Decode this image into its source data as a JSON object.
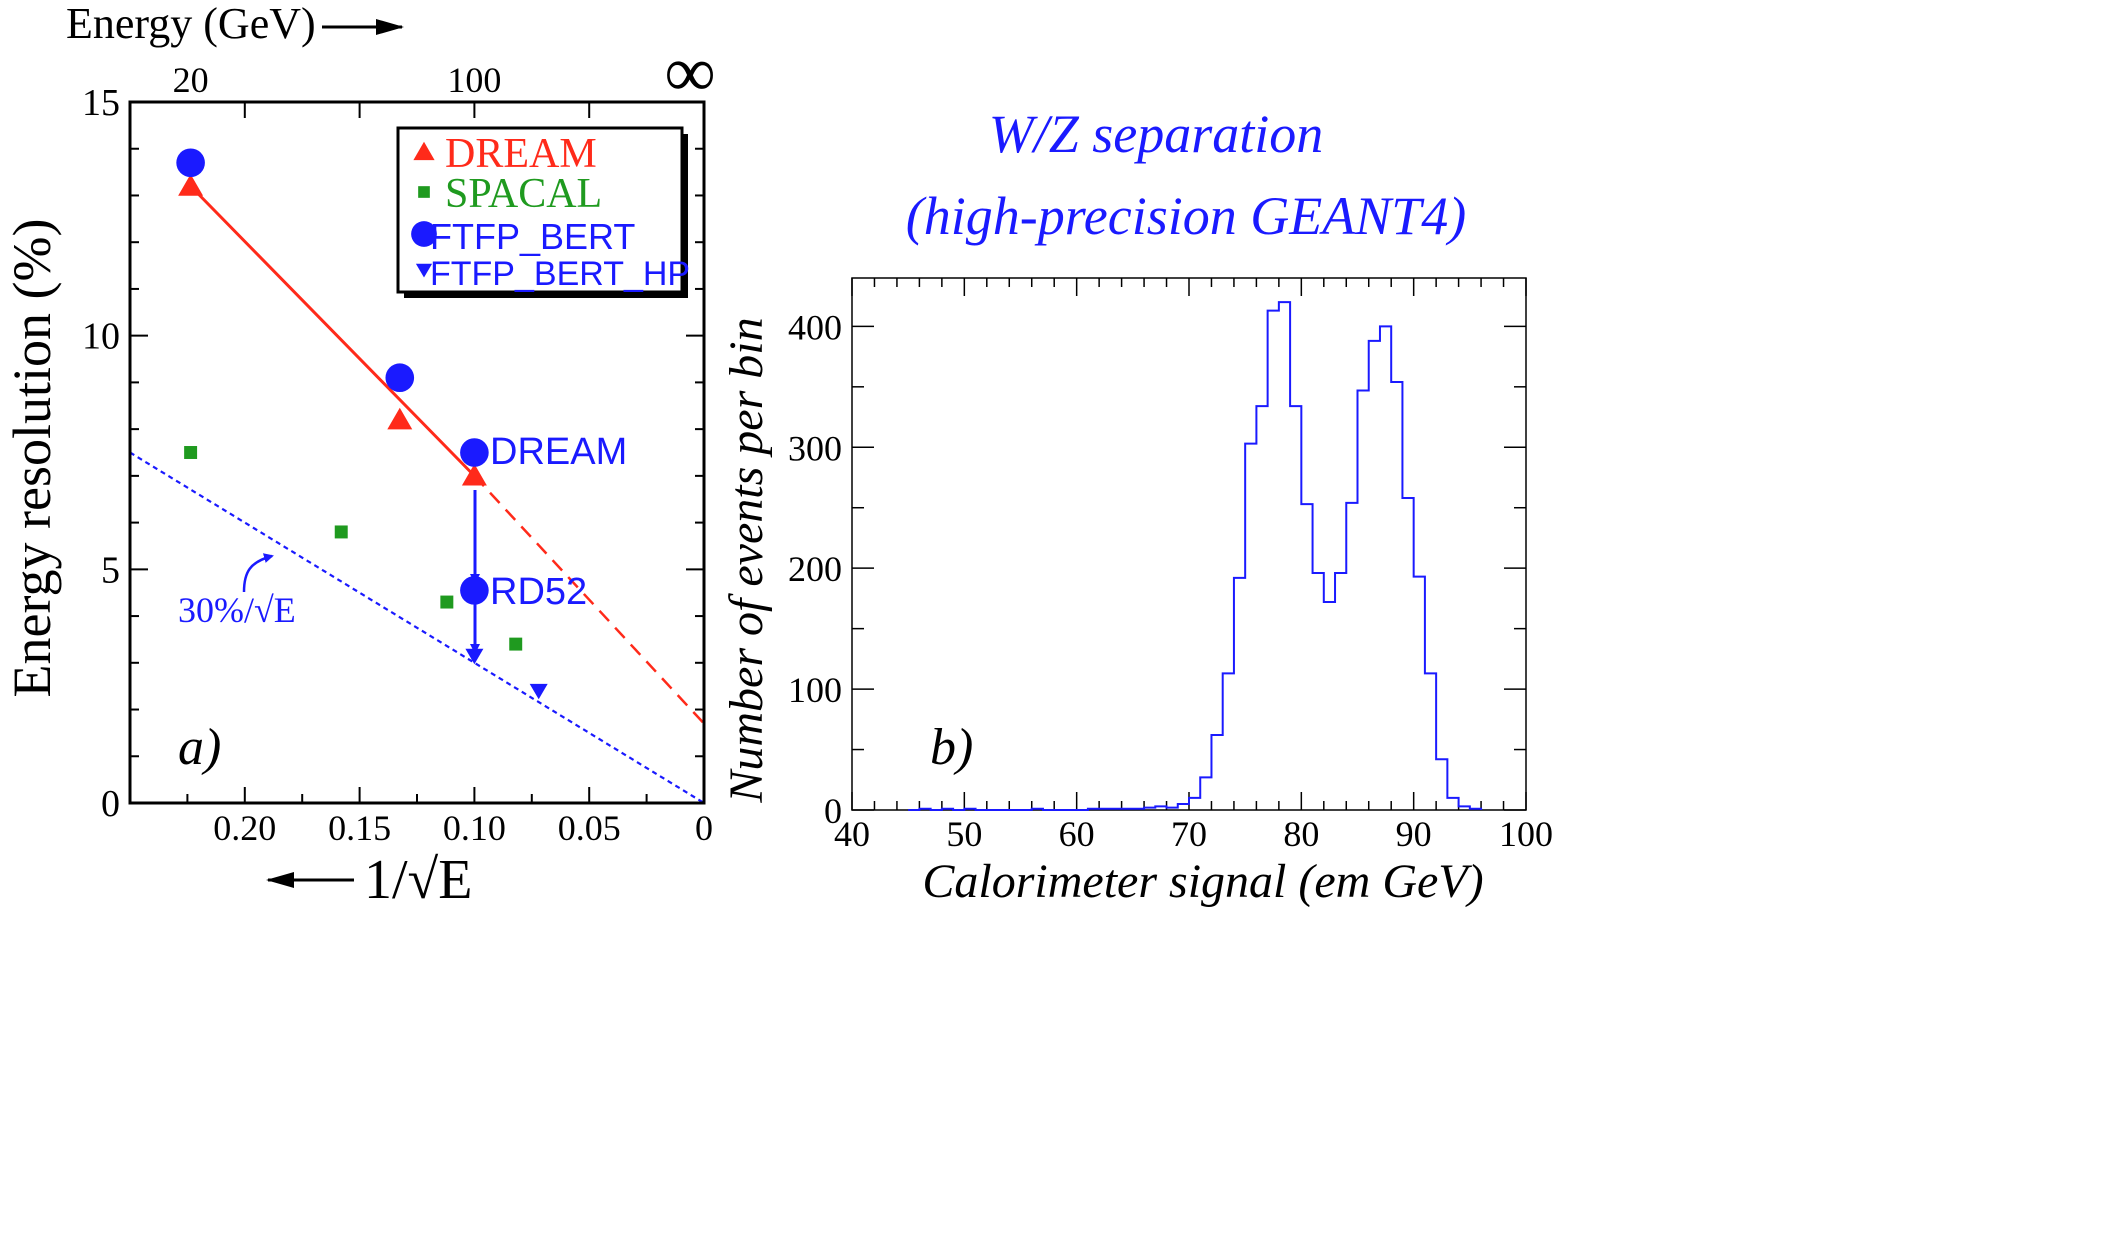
{
  "chart_data": [
    {
      "type": "scatter",
      "panel_label": "a)",
      "xlabel": "1/√E",
      "x_tick_labels": [
        "0.20",
        "0.15",
        "0.10",
        "0.05",
        "0"
      ],
      "x_ticks": [
        0.2,
        0.15,
        0.1,
        0.05,
        0
      ],
      "xlim": [
        0.25,
        0
      ],
      "top_axis_label": "Energy (GeV)",
      "top_tick_labels": [
        "20",
        "100",
        "∞"
      ],
      "top_ticks_x": [
        0.2236,
        0.1,
        0
      ],
      "ylabel": "Energy resolution (%)",
      "y_tick_labels": [
        "0",
        "5",
        "10",
        "15"
      ],
      "y_ticks": [
        0,
        5,
        10,
        15
      ],
      "ylim": [
        0,
        15
      ],
      "grid": false,
      "legend_position": "top-right",
      "series": [
        {
          "name": "DREAM",
          "marker": "triangle-up",
          "color": "#ff2a1a",
          "x": [
            0.2236,
            0.1325,
            0.1
          ],
          "y": [
            13.2,
            8.2,
            7.0
          ]
        },
        {
          "name": "SPACAL",
          "marker": "square",
          "color": "#1f9a1f",
          "x": [
            0.2236,
            0.158,
            0.112,
            0.082
          ],
          "y": [
            7.5,
            5.8,
            4.3,
            3.4
          ]
        },
        {
          "name": "FTFP_BERT",
          "marker": "circle",
          "color": "#1a1aff",
          "x": [
            0.2236,
            0.1325,
            0.1,
            0.1
          ],
          "y": [
            13.7,
            9.1,
            7.5,
            4.55
          ]
        },
        {
          "name": "FTFP_BERT_HP",
          "marker": "triangle-down",
          "color": "#1a1aff",
          "x": [
            0.1,
            0.072
          ],
          "y": [
            3.15,
            2.4
          ]
        }
      ],
      "lines": [
        {
          "kind": "fit-solid",
          "color": "#ff2a1a",
          "from": [
            0.2236,
            13.2
          ],
          "to": [
            0.1,
            7.0
          ]
        },
        {
          "kind": "fit-dashed",
          "color": "#ff2a1a",
          "from": [
            0.1,
            7.0
          ],
          "to": [
            0,
            1.7
          ]
        },
        {
          "kind": "reference-dotted",
          "color": "#1a1aff",
          "from": [
            0.25,
            7.5
          ],
          "to": [
            0,
            0
          ]
        }
      ],
      "annotations": [
        {
          "text": "DREAM",
          "color": "#1a1aff"
        },
        {
          "text": "RD52",
          "color": "#1a1aff"
        },
        {
          "text": "30%/√E",
          "color": "#1a1aff"
        }
      ]
    },
    {
      "type": "histogram",
      "panel_label": "b)",
      "title": "W/Z separation",
      "subtitle": "(high-precision GEANT4)",
      "xlabel": "Calorimeter signal (em GeV)",
      "ylabel": "Number of events per bin",
      "xlim": [
        40,
        100
      ],
      "ylim": [
        0,
        440
      ],
      "x_ticks": [
        40,
        50,
        60,
        70,
        80,
        90,
        100
      ],
      "y_ticks": [
        0,
        100,
        200,
        300,
        400
      ],
      "color": "#1a1aff",
      "bin_width": 1,
      "bins_start": [
        45,
        46,
        47,
        48,
        49,
        50,
        51,
        52,
        53,
        54,
        55,
        56,
        57,
        58,
        59,
        60,
        61,
        62,
        63,
        64,
        65,
        66,
        67,
        68,
        69,
        70,
        71,
        72,
        73,
        74,
        75,
        76,
        77,
        78,
        79,
        80,
        81,
        82,
        83,
        84,
        85,
        86,
        87,
        88,
        89,
        90,
        91,
        92,
        93,
        94,
        95
      ],
      "counts": [
        0,
        1,
        0,
        1,
        0,
        1,
        0,
        0,
        0,
        0,
        0,
        1,
        0,
        0,
        0,
        0,
        1,
        1,
        1,
        1,
        1,
        2,
        3,
        2,
        5,
        10,
        27,
        62,
        113,
        192,
        303,
        334,
        413,
        420,
        334,
        253,
        196,
        172,
        196,
        254,
        347,
        388,
        400,
        354,
        258,
        193,
        113,
        42,
        10,
        3,
        1
      ]
    }
  ]
}
